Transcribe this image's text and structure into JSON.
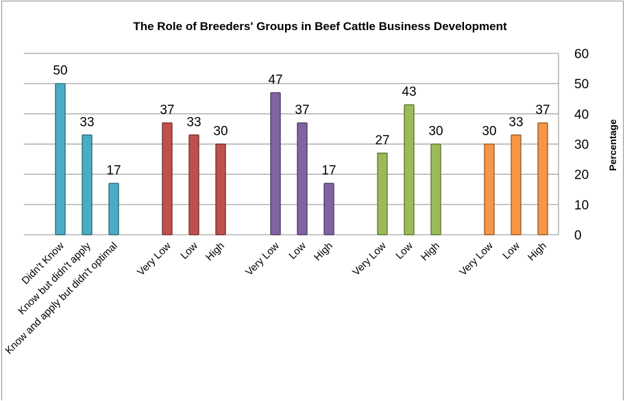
{
  "chart_data": {
    "type": "bar",
    "title": "The Role of Breeders' Groups in Beef Cattle Business Development",
    "xlabel": "",
    "ylabel": "Percentage",
    "ylim": [
      0,
      60
    ],
    "yticks": [
      0,
      10,
      20,
      30,
      40,
      50,
      60
    ],
    "grid": true,
    "legend": "none",
    "groups": [
      {
        "color": "#4bacc6",
        "categories": [
          "Didn't Know",
          "Know but didn't apply",
          "Know and apply but didn't optimal"
        ],
        "values": [
          50,
          33,
          17
        ]
      },
      {
        "color": "#c0504d",
        "categories": [
          "Very Low",
          "Low",
          "High"
        ],
        "values": [
          37,
          33,
          30
        ]
      },
      {
        "color": "#8064a2",
        "categories": [
          "Very Low",
          "Low",
          "High"
        ],
        "values": [
          47,
          37,
          17
        ]
      },
      {
        "color": "#9bbb59",
        "categories": [
          "Very Low",
          "Low",
          "High"
        ],
        "values": [
          27,
          43,
          30
        ]
      },
      {
        "color": "#f79646",
        "categories": [
          "Very Low",
          "Low",
          "High"
        ],
        "values": [
          30,
          33,
          37
        ]
      }
    ]
  }
}
